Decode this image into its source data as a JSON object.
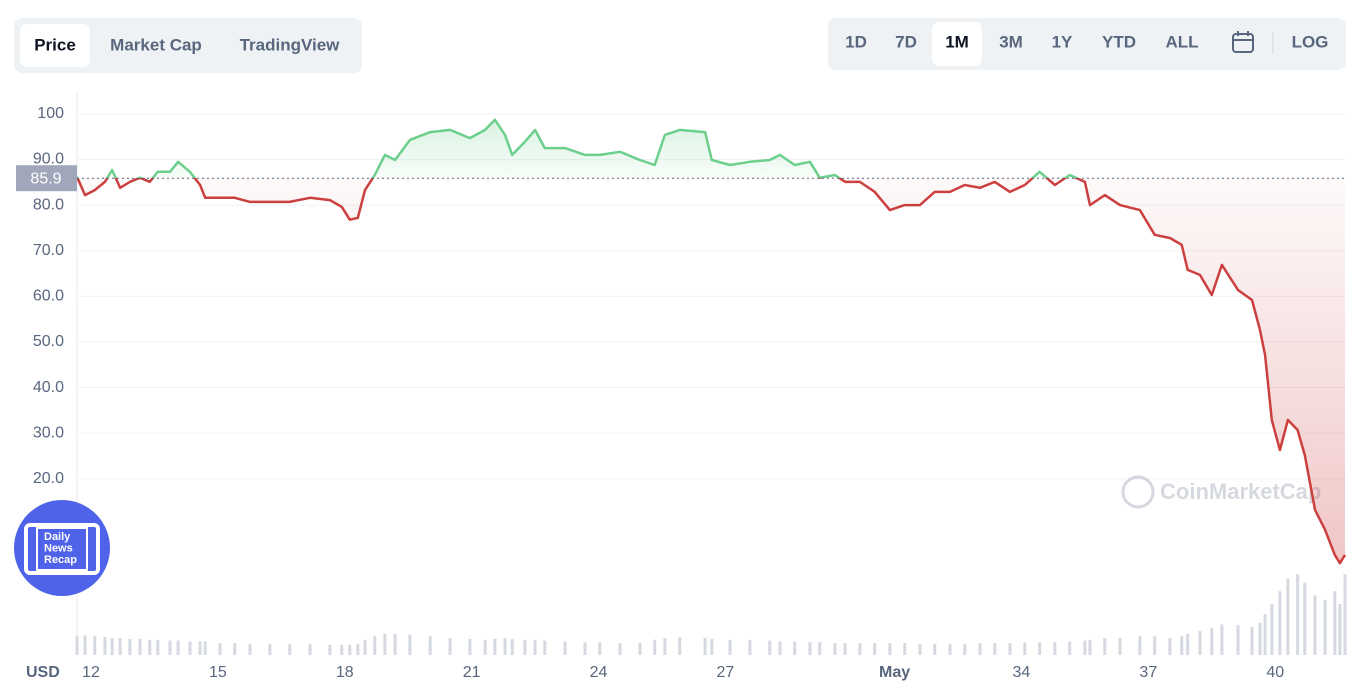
{
  "ui": {
    "tabs": [
      "Price",
      "Market Cap",
      "TradingView"
    ],
    "active_tab": 0,
    "ranges": [
      "1D",
      "7D",
      "1M",
      "3M",
      "1Y",
      "YTD",
      "ALL"
    ],
    "active_range": 2,
    "log_button": "LOG",
    "currency": "USD",
    "watermark": "CoinMarketCap",
    "badge": [
      "Daily",
      "News",
      "Recap"
    ]
  },
  "chart_data": {
    "type": "line",
    "baseline": 85.9,
    "up_color": "#6ccf8c",
    "down_color": "#cc3f3f",
    "grid": true,
    "xlim": [
      11.67,
      41.65
    ],
    "xticks": [
      12,
      15,
      18,
      21,
      24,
      27,
      {
        "value": 31,
        "label": "May"
      },
      34,
      37,
      40
    ],
    "ylim": [
      0,
      104.8
    ],
    "yticks": [
      {
        "value": 20,
        "label": "20.0"
      },
      {
        "value": 30,
        "label": "30.0"
      },
      {
        "value": 40,
        "label": "40.0"
      },
      {
        "value": 50,
        "label": "50.0"
      },
      {
        "value": 60,
        "label": "60.0"
      },
      {
        "value": 70,
        "label": "70.0"
      },
      {
        "value": 80,
        "label": "80.0"
      },
      {
        "value": 90,
        "label": "90.0"
      },
      100
    ],
    "x": [
      11.67,
      11.86,
      12.09,
      12.33,
      12.5,
      12.69,
      12.92,
      13.16,
      13.39,
      13.58,
      13.87,
      14.06,
      14.34,
      14.58,
      14.7,
      15.05,
      15.4,
      15.76,
      16.23,
      16.7,
      17.18,
      17.65,
      17.93,
      18.12,
      18.31,
      18.48,
      18.71,
      18.95,
      19.19,
      19.54,
      20.02,
      20.49,
      20.96,
      21.32,
      21.55,
      21.79,
      21.96,
      22.26,
      22.5,
      22.73,
      23.21,
      23.68,
      24.03,
      24.51,
      24.98,
      25.33,
      25.57,
      25.92,
      26.52,
      26.68,
      27.11,
      27.58,
      28.05,
      28.29,
      28.64,
      29,
      29.23,
      29.59,
      29.83,
      30.18,
      30.53,
      30.89,
      31.24,
      31.6,
      31.95,
      32.31,
      32.66,
      33.02,
      33.37,
      33.73,
      34.08,
      34.43,
      34.79,
      35.14,
      35.5,
      35.62,
      35.97,
      36.33,
      36.8,
      37.15,
      37.51,
      37.79,
      37.93,
      38.22,
      38.5,
      38.74,
      39.12,
      39.45,
      39.64,
      39.76,
      39.92,
      40.11,
      40.3,
      40.53,
      40.7,
      40.94,
      41.18,
      41.41,
      41.53,
      41.65
    ],
    "series": [
      {
        "name": "Price",
        "values": [
          86.2,
          82.2,
          83.3,
          85.1,
          87.7,
          83.8,
          85.1,
          86,
          85.1,
          87.3,
          87.3,
          89.5,
          87.3,
          84.4,
          81.6,
          81.6,
          81.6,
          80.7,
          80.7,
          80.7,
          81.6,
          81.1,
          79.6,
          76.8,
          77.2,
          83.3,
          86.6,
          91,
          89.9,
          94.3,
          96,
          96.5,
          94.7,
          96.5,
          98.7,
          95.4,
          91,
          93.9,
          96.5,
          92.5,
          92.5,
          91,
          91,
          91.7,
          89.9,
          88.8,
          95.4,
          96.5,
          96,
          89.9,
          88.8,
          89.5,
          89.9,
          91,
          88.8,
          89.5,
          86,
          86.6,
          85.1,
          85.1,
          82.9,
          78.9,
          80,
          80,
          82.9,
          82.9,
          84.4,
          83.8,
          85.1,
          82.9,
          84.4,
          87.3,
          84.4,
          86.6,
          85.1,
          80,
          82.2,
          80,
          78.9,
          73.5,
          72.8,
          71.3,
          65.8,
          64.7,
          60.3,
          66.9,
          61.4,
          59.2,
          52.6,
          47.1,
          32.9,
          26.3,
          32.9,
          30.7,
          25.2,
          13.2,
          8.8,
          3.3,
          1.5,
          3.3
        ]
      }
    ],
    "volume": {
      "vlim": [
        0,
        100
      ],
      "color": "#d5d9e0",
      "values": [
        22,
        23,
        22,
        21,
        20,
        20,
        19,
        19,
        18,
        18,
        17,
        17,
        16,
        16,
        16,
        14,
        14,
        13,
        13,
        13,
        13,
        12,
        12,
        12,
        13,
        18,
        22,
        25,
        25,
        24,
        22,
        20,
        19,
        18,
        19,
        20,
        19,
        18,
        18,
        17,
        16,
        15,
        15,
        14,
        14,
        18,
        20,
        21,
        20,
        19,
        18,
        18,
        17,
        16,
        16,
        15,
        15,
        14,
        14,
        14,
        14,
        14,
        14,
        13,
        13,
        13,
        13,
        14,
        14,
        14,
        15,
        15,
        15,
        16,
        17,
        18,
        20,
        20,
        22,
        22,
        20,
        22,
        25,
        28,
        32,
        36,
        35,
        33,
        38,
        48,
        60,
        75,
        90,
        95,
        85,
        70,
        65,
        75,
        60,
        95
      ]
    }
  }
}
